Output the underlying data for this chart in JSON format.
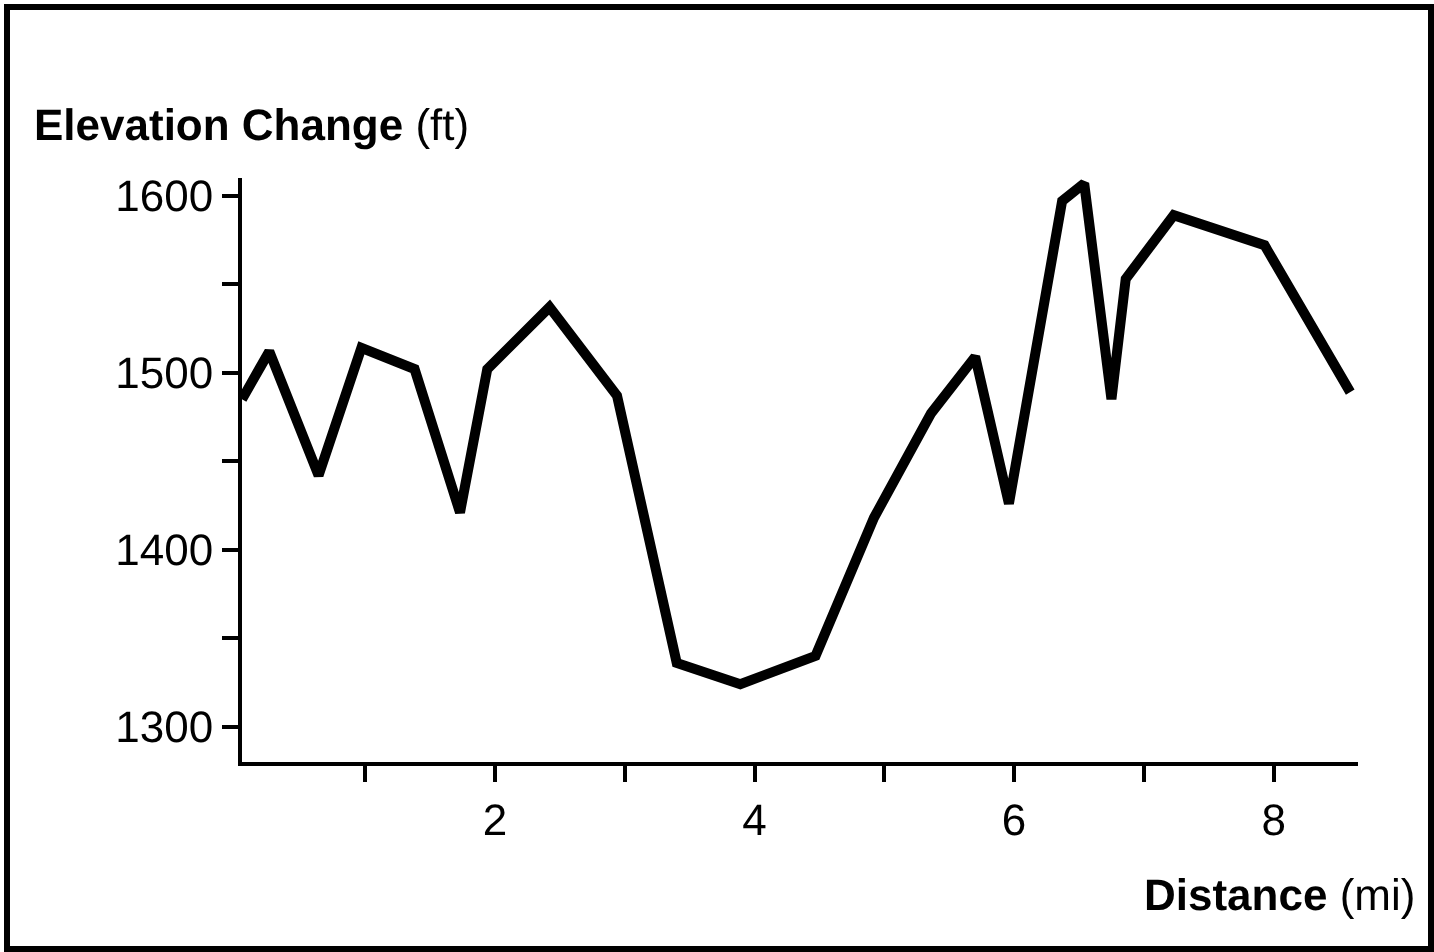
{
  "chart_data": {
    "type": "line",
    "ylabel": "Elevation Change (ft)",
    "xlabel": "Distance (mi)",
    "x": [
      0.05,
      0.26,
      0.64,
      0.97,
      1.38,
      1.73,
      1.94,
      2.42,
      2.94,
      3.4,
      3.89,
      4.47,
      4.92,
      5.36,
      5.7,
      5.96,
      6.37,
      6.54,
      6.75,
      6.86,
      7.23,
      7.93,
      8.59
    ],
    "series": [
      {
        "color": "#000000",
        "values": [
          1485,
          1512,
          1442,
          1514,
          1502,
          1421,
          1502,
          1537,
          1487,
          1336,
          1324,
          1340,
          1418,
          1477,
          1509,
          1426,
          1597,
          1607,
          1485,
          1553,
          1589,
          1572,
          1489
        ]
      }
    ],
    "xlim": [
      0.05,
      8.65
    ],
    "ylim": [
      1280,
      1610
    ],
    "xticks": [
      {
        "value": 1,
        "label": null
      },
      2,
      {
        "value": 3,
        "label": null
      },
      4,
      {
        "value": 5,
        "label": null
      },
      6,
      {
        "value": 7,
        "label": null
      },
      8
    ],
    "yticks": [
      1300,
      {
        "value": 1350,
        "label": null
      },
      1400,
      {
        "value": 1450,
        "label": null
      },
      1500,
      {
        "value": 1550,
        "label": null
      },
      1600
    ],
    "grid": false,
    "marker": "none",
    "line_style": "solid"
  }
}
